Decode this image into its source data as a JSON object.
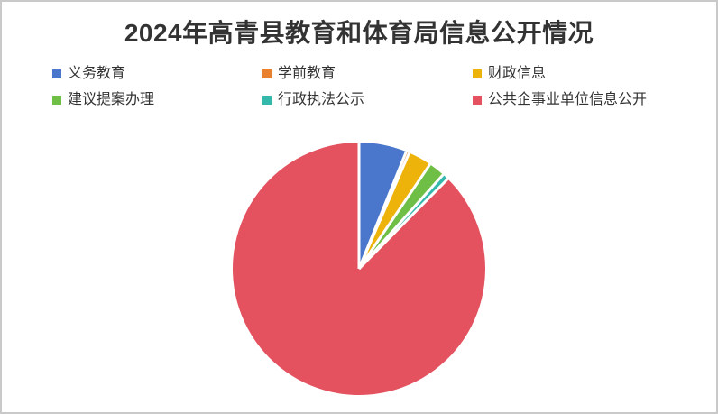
{
  "chart_data": {
    "type": "pie",
    "title": "2024年高青县教育和体育局信息公开情况",
    "legend_position": "top",
    "legend_rows": 2,
    "start_angle_deg": 0,
    "direction": "clockwise",
    "unit": "percent (estimated from slice angles)",
    "slices": [
      {
        "label": "义务教育",
        "value": 6.1,
        "color": "#4a77cc"
      },
      {
        "label": "学前教育",
        "value": 0.4,
        "color": "#e8802e"
      },
      {
        "label": "财政信息",
        "value": 3.0,
        "color": "#eeb30a"
      },
      {
        "label": "建议提案办理",
        "value": 2.1,
        "color": "#6fbe45"
      },
      {
        "label": "行政执法公示",
        "value": 0.8,
        "color": "#35b8ac"
      },
      {
        "label": "公共企事业单位信息公开",
        "value": 87.6,
        "color": "#e4515f"
      }
    ],
    "style": {
      "title_color": "#333333",
      "legend_text_color": "#333333",
      "separator_color": "#ffffff",
      "canvas_border_color": "#c9c9c9"
    }
  }
}
